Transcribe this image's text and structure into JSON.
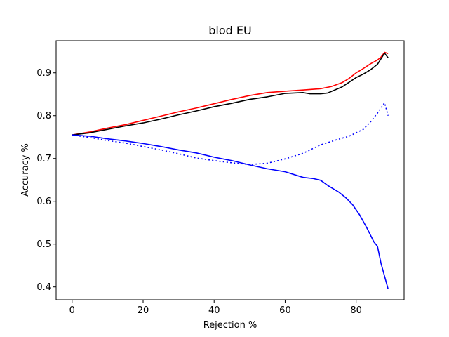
{
  "chart_data": {
    "type": "line",
    "title": "blod EU",
    "xlabel": "Rejection %",
    "ylabel": "Accuracy %",
    "xlim": [
      -4.5,
      93.5
    ],
    "ylim": [
      0.37,
      0.975
    ],
    "xticks": [
      0,
      20,
      40,
      60,
      80
    ],
    "yticks": [
      0.4,
      0.5,
      0.6,
      0.7,
      0.8,
      0.9
    ],
    "grid": false,
    "series": [
      {
        "color": "#ff0000",
        "style": "solid",
        "points": [
          [
            0,
            0.755
          ],
          [
            5,
            0.762
          ],
          [
            10,
            0.771
          ],
          [
            15,
            0.779
          ],
          [
            20,
            0.789
          ],
          [
            25,
            0.799
          ],
          [
            30,
            0.809
          ],
          [
            35,
            0.818
          ],
          [
            40,
            0.828
          ],
          [
            45,
            0.838
          ],
          [
            50,
            0.847
          ],
          [
            55,
            0.854
          ],
          [
            60,
            0.857
          ],
          [
            65,
            0.86
          ],
          [
            70,
            0.863
          ],
          [
            73,
            0.868
          ],
          [
            76,
            0.877
          ],
          [
            78,
            0.887
          ],
          [
            80,
            0.9
          ],
          [
            82,
            0.91
          ],
          [
            84,
            0.921
          ],
          [
            86,
            0.93
          ],
          [
            87,
            0.937
          ],
          [
            88,
            0.948
          ],
          [
            89,
            0.945
          ]
        ]
      },
      {
        "color": "#000000",
        "style": "solid",
        "points": [
          [
            0,
            0.755
          ],
          [
            5,
            0.76
          ],
          [
            10,
            0.768
          ],
          [
            15,
            0.776
          ],
          [
            20,
            0.783
          ],
          [
            25,
            0.792
          ],
          [
            30,
            0.802
          ],
          [
            35,
            0.811
          ],
          [
            40,
            0.821
          ],
          [
            45,
            0.829
          ],
          [
            50,
            0.838
          ],
          [
            55,
            0.844
          ],
          [
            60,
            0.852
          ],
          [
            65,
            0.854
          ],
          [
            67,
            0.851
          ],
          [
            70,
            0.851
          ],
          [
            72,
            0.853
          ],
          [
            74,
            0.86
          ],
          [
            76,
            0.867
          ],
          [
            78,
            0.878
          ],
          [
            80,
            0.889
          ],
          [
            82,
            0.897
          ],
          [
            84,
            0.907
          ],
          [
            86,
            0.92
          ],
          [
            87,
            0.933
          ],
          [
            88,
            0.946
          ],
          [
            89,
            0.935
          ]
        ]
      },
      {
        "color": "#0000ff",
        "style": "dotted",
        "points": [
          [
            0,
            0.755
          ],
          [
            5,
            0.749
          ],
          [
            10,
            0.742
          ],
          [
            15,
            0.736
          ],
          [
            20,
            0.728
          ],
          [
            25,
            0.72
          ],
          [
            30,
            0.711
          ],
          [
            35,
            0.701
          ],
          [
            40,
            0.695
          ],
          [
            45,
            0.69
          ],
          [
            50,
            0.686
          ],
          [
            55,
            0.689
          ],
          [
            60,
            0.699
          ],
          [
            65,
            0.712
          ],
          [
            70,
            0.732
          ],
          [
            75,
            0.745
          ],
          [
            78,
            0.752
          ],
          [
            80,
            0.76
          ],
          [
            82,
            0.768
          ],
          [
            84,
            0.785
          ],
          [
            86,
            0.806
          ],
          [
            88,
            0.83
          ],
          [
            89,
            0.8
          ]
        ]
      },
      {
        "color": "#0000ff",
        "style": "solid",
        "points": [
          [
            0,
            0.755
          ],
          [
            5,
            0.752
          ],
          [
            10,
            0.746
          ],
          [
            15,
            0.741
          ],
          [
            20,
            0.735
          ],
          [
            25,
            0.728
          ],
          [
            30,
            0.72
          ],
          [
            35,
            0.713
          ],
          [
            40,
            0.703
          ],
          [
            45,
            0.695
          ],
          [
            50,
            0.685
          ],
          [
            55,
            0.676
          ],
          [
            60,
            0.669
          ],
          [
            65,
            0.656
          ],
          [
            68,
            0.653
          ],
          [
            70,
            0.649
          ],
          [
            72,
            0.637
          ],
          [
            75,
            0.622
          ],
          [
            77,
            0.609
          ],
          [
            79,
            0.592
          ],
          [
            81,
            0.568
          ],
          [
            83,
            0.538
          ],
          [
            85,
            0.505
          ],
          [
            86,
            0.495
          ],
          [
            87,
            0.455
          ],
          [
            88,
            0.425
          ],
          [
            89,
            0.395
          ]
        ]
      }
    ]
  }
}
